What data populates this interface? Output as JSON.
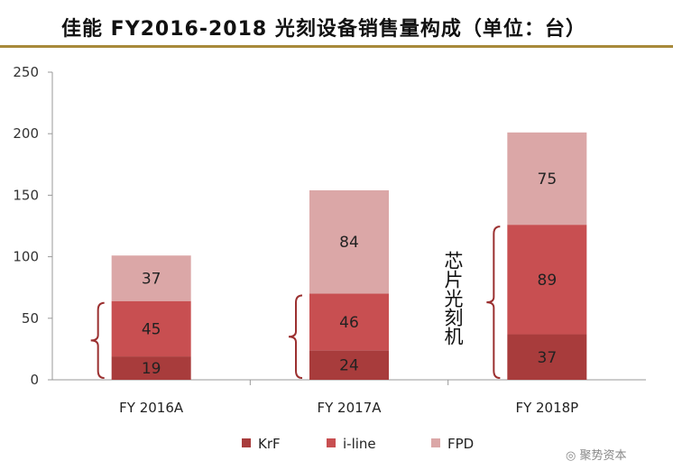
{
  "chart_data": {
    "type": "bar",
    "stacked": true,
    "title": "佳能 FY2016-2018 光刻设备销售量构成（单位：台）",
    "categories": [
      "FY 2016A",
      "FY 2017A",
      "FY 2018P"
    ],
    "series": [
      {
        "name": "KrF",
        "values": [
          19,
          24,
          37
        ],
        "color": "#a83c3c"
      },
      {
        "name": "i-line",
        "values": [
          45,
          46,
          89
        ],
        "color": "#c84f51"
      },
      {
        "name": "FPD",
        "values": [
          37,
          84,
          75
        ],
        "color": "#dba7a7"
      }
    ],
    "ylim": [
      0,
      250
    ],
    "yticks": [
      0,
      50,
      100,
      150,
      200,
      250
    ],
    "xlabel": "",
    "ylabel": "",
    "legend": "bottom",
    "annotation": "芯片光刻机",
    "grid": false
  },
  "colors": {
    "bracket": "#9b3030",
    "axis": "#999999"
  },
  "watermark": "聚势资本"
}
